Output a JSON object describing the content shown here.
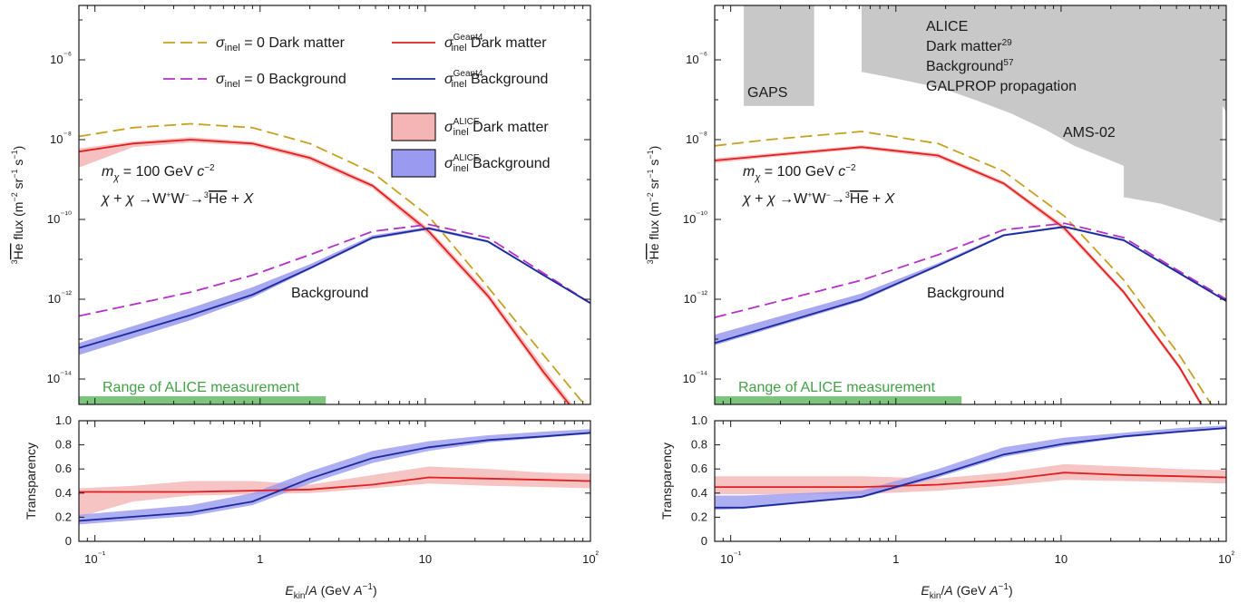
{
  "chart_data": [
    {
      "panel": "left",
      "type": "line",
      "ylabel": "3He flux (m⁻² sr⁻¹ s⁻¹)",
      "x_scale": "log",
      "y_scale": "log",
      "xlim": [
        0.08,
        100
      ],
      "ylim": [
        3e-15,
        3e-05
      ],
      "legend": [
        {
          "label": "σinel = 0 Dark matter",
          "color": "#c8a020",
          "dash": true
        },
        {
          "label": "σinel Geant4 Dark matter",
          "color": "#e02020",
          "dash": false
        },
        {
          "label": "σinel = 0 Background",
          "color": "#b530c8",
          "dash": true
        },
        {
          "label": "σinel Geant4 Background",
          "color": "#1a2a9a",
          "dash": false
        },
        {
          "label": "σinel ALICE Dark matter",
          "color": "#f5b5b5",
          "band": true
        },
        {
          "label": "σinel ALICE Background",
          "color": "#9090f0",
          "band": true
        }
      ],
      "annotations": [
        "mχ = 100 GeV c⁻²",
        "χ + χ → W⁺W⁻ → 3He + X",
        "Background",
        "Range of ALICE measurement"
      ],
      "alice_range": [
        0.08,
        2.5
      ],
      "series": [
        {
          "name": "σinel = 0 Dark matter",
          "x": [
            0.08,
            0.17,
            0.38,
            0.9,
            2.0,
            4.8,
            10.5,
            24,
            52,
            100
          ],
          "y": [
            1.2e-08,
            2e-08,
            2.5e-08,
            2e-08,
            8e-09,
            1.5e-09,
            1.2e-10,
            2e-12,
            4e-14,
            1.5e-15
          ]
        },
        {
          "name": "σinel Geant4 Dark matter",
          "x": [
            0.08,
            0.17,
            0.38,
            0.9,
            2.0,
            4.8,
            10.5,
            24,
            52,
            100
          ],
          "y": [
            5e-09,
            8e-09,
            1e-08,
            8e-09,
            3.5e-09,
            7e-10,
            5e-11,
            1.2e-12,
            1.5e-14,
            5e-16
          ]
        },
        {
          "name": "σinel = 0 Background",
          "x": [
            0.08,
            0.38,
            0.9,
            2.0,
            4.8,
            10.5,
            24,
            52,
            100
          ],
          "y": [
            3.8e-13,
            1.5e-12,
            4e-12,
            1.3e-11,
            5e-11,
            7.5e-11,
            3.5e-11,
            4.5e-12,
            8e-13
          ]
        },
        {
          "name": "σinel Geant4 Background",
          "x": [
            0.08,
            0.38,
            0.9,
            2.0,
            4.8,
            10.5,
            24,
            52,
            100
          ],
          "y": [
            6e-14,
            4e-13,
            1.3e-12,
            6e-12,
            3.5e-11,
            6e-11,
            2.8e-11,
            4e-12,
            8e-13
          ]
        }
      ],
      "bands": [
        {
          "name": "σinel ALICE Dark matter",
          "x": [
            0.08,
            0.17,
            0.38,
            0.9,
            2.0,
            4.8,
            10.5,
            24,
            52,
            100
          ],
          "lo": [
            2e-09,
            6.5e-09,
            8.5e-09,
            7e-09,
            3e-09,
            6e-10,
            4e-11,
            1e-12,
            1.2e-14,
            4e-16
          ],
          "hi": [
            6e-09,
            9e-09,
            1.15e-08,
            9e-09,
            4e-09,
            8e-10,
            6e-11,
            1.5e-12,
            2e-14,
            6e-16
          ]
        },
        {
          "name": "σinel ALICE Background",
          "x": [
            0.08,
            0.38,
            0.9,
            2.0,
            4.8,
            10.5,
            24,
            52,
            100
          ],
          "lo": [
            4e-14,
            3e-13,
            1.1e-12,
            5.5e-12,
            3.2e-11,
            5.5e-11,
            2.6e-11,
            3.8e-12,
            7.5e-13
          ],
          "hi": [
            8e-14,
            6e-13,
            2e-12,
            7.5e-12,
            4e-11,
            6.5e-11,
            3e-11,
            4.3e-12,
            8.5e-13
          ]
        }
      ],
      "transparency": {
        "ylabel": "Transparency",
        "ylim": [
          0,
          1.0
        ],
        "yticks": [
          "0",
          "0.2",
          "0.4",
          "0.6",
          "0.8",
          "1.0"
        ],
        "series": [
          {
            "name": "σinel Geant4 Dark matter",
            "x": [
              0.08,
              0.38,
              0.9,
              2.0,
              4.8,
              10.5,
              24,
              52,
              100
            ],
            "y": [
              0.41,
              0.41,
              0.42,
              0.43,
              0.47,
              0.53,
              0.52,
              0.51,
              0.5
            ]
          },
          {
            "name": "σinel Geant4 Background",
            "x": [
              0.08,
              0.38,
              0.9,
              2.0,
              4.8,
              10.5,
              24,
              52,
              100
            ],
            "y": [
              0.17,
              0.24,
              0.33,
              0.52,
              0.69,
              0.78,
              0.84,
              0.87,
              0.9
            ]
          }
        ],
        "bands": [
          {
            "name": "σinel ALICE Dark matter",
            "x": [
              0.08,
              0.17,
              0.38,
              0.9,
              2.0,
              4.8,
              10.5,
              24,
              52,
              100
            ],
            "lo": [
              0.2,
              0.33,
              0.38,
              0.39,
              0.4,
              0.44,
              0.48,
              0.46,
              0.45,
              0.44
            ],
            "hi": [
              0.44,
              0.46,
              0.5,
              0.5,
              0.47,
              0.55,
              0.62,
              0.6,
              0.57,
              0.56
            ]
          },
          {
            "name": "σinel ALICE Background",
            "x": [
              0.08,
              0.38,
              0.9,
              2.0,
              4.8,
              10.5,
              24,
              52,
              100
            ],
            "lo": [
              0.14,
              0.21,
              0.3,
              0.48,
              0.65,
              0.75,
              0.82,
              0.86,
              0.89
            ],
            "hi": [
              0.22,
              0.3,
              0.4,
              0.58,
              0.75,
              0.83,
              0.88,
              0.91,
              0.93
            ]
          }
        ]
      }
    },
    {
      "panel": "right",
      "type": "line",
      "ylabel": "3He flux (m⁻² sr⁻¹ s⁻¹)",
      "x_scale": "log",
      "y_scale": "log",
      "xlim": [
        0.08,
        100
      ],
      "ylim": [
        3e-15,
        3e-05
      ],
      "annotations": [
        "ALICE",
        "Dark matter29",
        "Background57",
        "GALPROP propagation",
        "GAPS",
        "AMS-02",
        "mχ = 100 GeV c⁻²",
        "χ + χ → W⁺W⁻ → 3He + X",
        "Background",
        "Range of ALICE measurement"
      ],
      "alice_range": [
        0.08,
        2.5
      ],
      "gaps_region": {
        "x": [
          0.12,
          0.32
        ],
        "y_top": 3e-05,
        "y_bottom": 7e-08
      },
      "ams_region": {
        "x": [
          0.62,
          0.62,
          0.75,
          1.0,
          1.5,
          2.0,
          3.0,
          5.0,
          8.0,
          12.0,
          20.0,
          24.0,
          24.0,
          40.0,
          60.0,
          95.0,
          95.0,
          100.0,
          100.0
        ],
        "y": [
          3e-05,
          5e-07,
          4.3e-07,
          3.4e-07,
          2.4e-07,
          1.8e-07,
          1e-07,
          4.5e-08,
          1.8e-08,
          7e-09,
          3e-09,
          2.2e-09,
          3.6e-10,
          2.5e-10,
          1.5e-10,
          8e-11,
          7e-08,
          5e-08,
          3e-05
        ]
      },
      "series": [
        {
          "name": "σinel = 0 Dark matter",
          "x": [
            0.08,
            0.17,
            0.62,
            1.8,
            4.5,
            10.5,
            24,
            52,
            100
          ],
          "y": [
            7e-09,
            1e-08,
            1.6e-08,
            8e-09,
            1.6e-09,
            1.2e-10,
            3e-12,
            4e-14,
            6e-16
          ]
        },
        {
          "name": "σinel Geant4 Dark matter",
          "x": [
            0.08,
            0.17,
            0.62,
            1.8,
            4.5,
            10.5,
            24,
            52,
            100
          ],
          "y": [
            3e-09,
            4e-09,
            6.5e-09,
            4e-09,
            8e-10,
            6e-11,
            1.5e-12,
            2e-14,
            2e-16
          ]
        },
        {
          "name": "σinel = 0 Background",
          "x": [
            0.08,
            0.62,
            1.8,
            4.5,
            10.5,
            24,
            52,
            100
          ],
          "y": [
            3.5e-13,
            3e-12,
            1.3e-11,
            5.5e-11,
            8e-11,
            3.5e-11,
            5e-12,
            1e-12
          ]
        },
        {
          "name": "σinel Geant4 Background",
          "x": [
            0.08,
            0.62,
            1.8,
            4.5,
            10.5,
            24,
            52,
            100
          ],
          "y": [
            8e-14,
            1e-12,
            7e-12,
            4e-11,
            6.5e-11,
            3e-11,
            4.5e-12,
            9e-13
          ]
        }
      ],
      "bands": [
        {
          "name": "σinel ALICE Dark matter",
          "x": [
            0.08,
            0.17,
            0.62,
            1.8,
            4.5,
            10.5,
            24,
            52,
            100
          ],
          "lo": [
            2.6e-09,
            3.6e-09,
            5.8e-09,
            3.5e-09,
            7e-10,
            5e-11,
            1.3e-12,
            1.7e-14,
            1.7e-16
          ],
          "hi": [
            3.4e-09,
            4.5e-09,
            7.2e-09,
            4.5e-09,
            9e-10,
            7e-11,
            1.7e-12,
            2.3e-14,
            2.3e-16
          ]
        },
        {
          "name": "σinel ALICE Background",
          "x": [
            0.08,
            0.62,
            1.8,
            4.5,
            10.5,
            24,
            52,
            100
          ],
          "lo": [
            7e-14,
            9e-13,
            6.5e-12,
            3.8e-11,
            6.2e-11,
            2.8e-11,
            4.2e-12,
            8.5e-13
          ],
          "hi": [
            1.3e-13,
            1.4e-12,
            8e-12,
            4.3e-11,
            7e-11,
            3.2e-11,
            4.8e-12,
            9.5e-13
          ]
        }
      ],
      "transparency": {
        "ylabel": "Transparency",
        "ylim": [
          0,
          1.0
        ],
        "yticks": [
          "0",
          "0.2",
          "0.4",
          "0.6",
          "0.8",
          "1.0"
        ],
        "series": [
          {
            "name": "σinel Geant4 Dark matter",
            "x": [
              0.08,
              0.62,
              1.8,
              4.5,
              10.5,
              24,
              52,
              100
            ],
            "y": [
              0.45,
              0.45,
              0.47,
              0.51,
              0.57,
              0.55,
              0.54,
              0.53
            ]
          },
          {
            "name": "σinel Geant4 Background",
            "x": [
              0.08,
              0.12,
              0.62,
              1.8,
              4.5,
              10.5,
              24,
              52,
              100
            ],
            "y": [
              0.28,
              0.28,
              0.37,
              0.55,
              0.72,
              0.81,
              0.87,
              0.91,
              0.94
            ]
          }
        ],
        "bands": [
          {
            "name": "σinel ALICE Dark matter",
            "x": [
              0.08,
              0.62,
              1.8,
              4.5,
              10.5,
              24,
              52,
              100
            ],
            "lo": [
              0.39,
              0.39,
              0.42,
              0.46,
              0.51,
              0.5,
              0.49,
              0.48
            ],
            "hi": [
              0.54,
              0.54,
              0.52,
              0.57,
              0.64,
              0.62,
              0.6,
              0.59
            ]
          },
          {
            "name": "σinel ALICE Background",
            "x": [
              0.08,
              0.12,
              0.62,
              1.8,
              4.5,
              10.5,
              24,
              52,
              100
            ],
            "lo": [
              0.26,
              0.27,
              0.36,
              0.53,
              0.7,
              0.79,
              0.86,
              0.9,
              0.93
            ],
            "hi": [
              0.38,
              0.38,
              0.42,
              0.6,
              0.78,
              0.86,
              0.9,
              0.94,
              0.96
            ]
          }
        ]
      }
    }
  ],
  "xlabel": "Ekin/A (GeV A⁻¹)",
  "xticks": [
    "10⁻¹",
    "1",
    "10",
    "10²"
  ],
  "yticks_flux": [
    "10⁻¹⁴",
    "10⁻¹²",
    "10⁻¹⁰",
    "10⁻⁸",
    "10⁻⁶"
  ],
  "colors": {
    "dm_zero": "#c8a020",
    "dm_geant": "#e02020",
    "bg_zero": "#b530c8",
    "bg_geant": "#1a2a9a",
    "dm_band": "#f5b5b5",
    "bg_band": "#9a9af0",
    "alice_range": "#7dc47d",
    "exp_region": "#c8c8c8"
  }
}
